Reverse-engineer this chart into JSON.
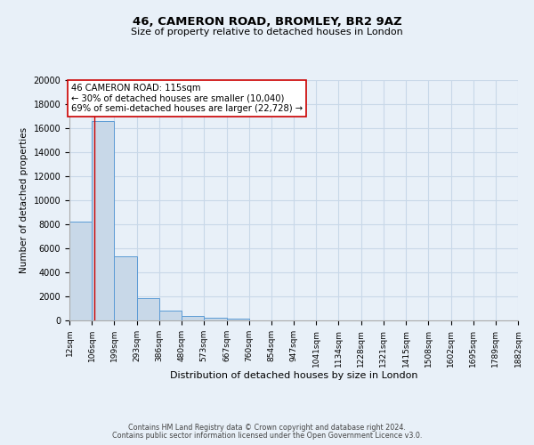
{
  "title": "46, CAMERON ROAD, BROMLEY, BR2 9AZ",
  "subtitle": "Size of property relative to detached houses in London",
  "xlabel": "Distribution of detached houses by size in London",
  "ylabel": "Number of detached properties",
  "bin_edges": [
    12,
    106,
    199,
    293,
    386,
    480,
    573,
    667,
    760,
    854,
    947,
    1041,
    1134,
    1228,
    1321,
    1415,
    1508,
    1602,
    1695,
    1789,
    1882
  ],
  "bin_counts": [
    8200,
    16600,
    5300,
    1850,
    800,
    350,
    200,
    150,
    0,
    0,
    0,
    0,
    0,
    0,
    0,
    0,
    0,
    0,
    0,
    0
  ],
  "bar_color": "#c8d8e8",
  "bar_edge_color": "#5b9bd5",
  "property_line_x": 115,
  "property_line_color": "#cc0000",
  "annotation_text": "46 CAMERON ROAD: 115sqm\n← 30% of detached houses are smaller (10,040)\n69% of semi-detached houses are larger (22,728) →",
  "annotation_box_color": "#ffffff",
  "annotation_box_edge_color": "#cc0000",
  "ylim": [
    0,
    20000
  ],
  "yticks": [
    0,
    2000,
    4000,
    6000,
    8000,
    10000,
    12000,
    14000,
    16000,
    18000,
    20000
  ],
  "tick_labels": [
    "12sqm",
    "106sqm",
    "199sqm",
    "293sqm",
    "386sqm",
    "480sqm",
    "573sqm",
    "667sqm",
    "760sqm",
    "854sqm",
    "947sqm",
    "1041sqm",
    "1134sqm",
    "1228sqm",
    "1321sqm",
    "1415sqm",
    "1508sqm",
    "1602sqm",
    "1695sqm",
    "1789sqm",
    "1882sqm"
  ],
  "grid_color": "#c8d8e8",
  "bg_color": "#e8f0f8",
  "footer_line1": "Contains HM Land Registry data © Crown copyright and database right 2024.",
  "footer_line2": "Contains public sector information licensed under the Open Government Licence v3.0."
}
